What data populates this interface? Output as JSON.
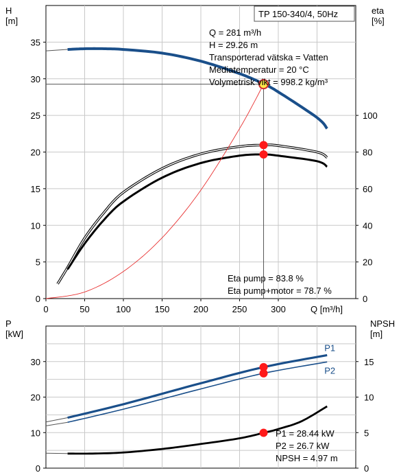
{
  "chart_data": [
    {
      "type": "line",
      "title": "TP 150-340/4, 50Hz",
      "xlabel": "Q [m³/h]",
      "ylabel": "H [m]",
      "y2label": "eta [%]",
      "xlim": [
        0,
        400
      ],
      "ylim": [
        0,
        40
      ],
      "y2lim": [
        0,
        160
      ],
      "xticks": [
        0,
        50,
        100,
        150,
        200,
        250,
        300
      ],
      "yticks": [
        0,
        5,
        10,
        15,
        20,
        25,
        30,
        35
      ],
      "y2ticks": [
        0,
        20,
        40,
        60,
        80,
        100
      ],
      "grid": true,
      "info_lines": [
        "Q = 281 m³/h",
        "H = 29.26 m",
        "Transporterad vätska = Vatten",
        "Mediatemperatur = 20 °C",
        "Volymetrisk vikt = 998.2 kg/m³"
      ],
      "eta_lines": [
        "Eta pump = 83.8 %",
        "Eta pump+motor = 78.7 %"
      ],
      "series": [
        {
          "axis": "left",
          "style": "pump-curve",
          "color": "#1a4f8a",
          "dashed_start": true,
          "x": [
            0,
            28,
            50,
            75,
            100,
            150,
            200,
            250,
            281,
            300,
            350,
            363
          ],
          "y": [
            33.8,
            34.0,
            34.1,
            34.1,
            34.0,
            33.5,
            32.4,
            30.7,
            29.3,
            28.2,
            24.7,
            23.2
          ]
        },
        {
          "axis": "right",
          "style": "eta-pump",
          "color": "#000000",
          "x": [
            15,
            28,
            50,
            75,
            100,
            150,
            200,
            250,
            281,
            300,
            350,
            363
          ],
          "y": [
            8,
            17,
            33,
            47,
            58,
            71,
            79,
            83,
            83.8,
            83.5,
            80,
            77
          ]
        },
        {
          "axis": "right",
          "style": "eta-pump-motor",
          "color": "#000000",
          "x": [
            28,
            50,
            75,
            100,
            150,
            200,
            250,
            281,
            300,
            350,
            363
          ],
          "y": [
            16,
            30,
            43,
            53,
            66,
            74,
            78,
            78.7,
            78,
            75,
            72
          ]
        },
        {
          "axis": "left",
          "style": "system-curve",
          "color": "#e83030",
          "x": [
            0,
            50,
            100,
            150,
            200,
            250,
            281
          ],
          "y": [
            0,
            0.9,
            3.7,
            8.3,
            14.8,
            23.2,
            29.26
          ]
        }
      ],
      "operating_points": [
        {
          "x": 281,
          "y": 29.26,
          "axis": "left",
          "kind": "duty"
        },
        {
          "x": 281,
          "y": 83.8,
          "axis": "right",
          "kind": "eta"
        },
        {
          "x": 281,
          "y": 78.7,
          "axis": "right",
          "kind": "eta"
        }
      ]
    },
    {
      "type": "line",
      "ylabel": "P [kW]",
      "y2label": "NPSH [m]",
      "xlim": [
        0,
        400
      ],
      "ylim": [
        0,
        40
      ],
      "y2lim": [
        0,
        20
      ],
      "yticks": [
        0,
        10,
        20,
        30
      ],
      "y2ticks": [
        0,
        5,
        10,
        15
      ],
      "grid": true,
      "info_lines": [
        "P1 = 28.44 kW",
        "P2 = 26.7 kW",
        "NPSH = 4.97 m"
      ],
      "series": [
        {
          "name": "P1",
          "axis": "left",
          "color": "#1a4f8a",
          "thick": true,
          "dashed_start": true,
          "x": [
            0,
            28,
            100,
            200,
            281,
            363
          ],
          "y": [
            13.0,
            14.2,
            18.0,
            23.9,
            28.44,
            31.8
          ]
        },
        {
          "name": "P2",
          "axis": "left",
          "color": "#1a4f8a",
          "thick": false,
          "dashed_start": true,
          "x": [
            0,
            28,
            100,
            200,
            281,
            363
          ],
          "y": [
            11.9,
            12.9,
            16.6,
            22.3,
            26.7,
            29.9
          ]
        },
        {
          "name": "NPSH",
          "axis": "right",
          "color": "#000000",
          "thick": true,
          "dashed_start": true,
          "x": [
            0,
            28,
            60,
            100,
            150,
            200,
            250,
            281,
            300,
            330,
            363
          ],
          "y": [
            2.1,
            2.05,
            2.05,
            2.2,
            2.7,
            3.4,
            4.2,
            4.97,
            5.5,
            6.6,
            8.7
          ]
        }
      ],
      "operating_points": [
        {
          "x": 281,
          "y": 28.44,
          "axis": "left"
        },
        {
          "x": 281,
          "y": 26.7,
          "axis": "left"
        },
        {
          "x": 281,
          "y": 4.97,
          "axis": "right"
        }
      ]
    }
  ]
}
